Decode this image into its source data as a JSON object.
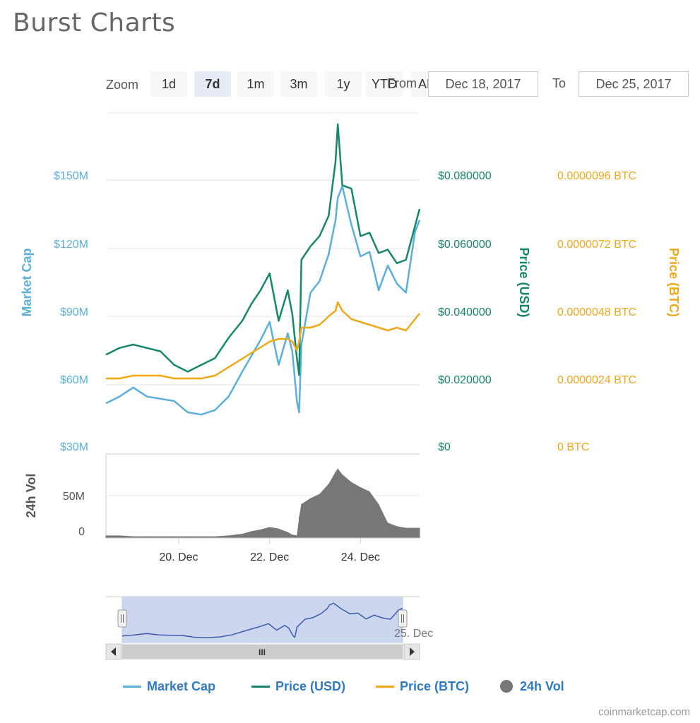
{
  "page": {
    "title": "Burst Charts"
  },
  "toolbar": {
    "zoom_label": "Zoom",
    "zoom_buttons": [
      "1d",
      "7d",
      "1m",
      "3m",
      "1y",
      "YTD",
      "ALL"
    ],
    "active_zoom": "7d",
    "from_label": "From",
    "to_label": "To",
    "from_value": "Dec 18, 2017",
    "to_value": "Dec 25, 2017"
  },
  "legend": [
    {
      "label": "Market Cap",
      "color": "#5aafdf",
      "symbol": "line"
    },
    {
      "label": "Price (USD)",
      "color": "#16876a",
      "symbol": "line"
    },
    {
      "label": "Price (BTC)",
      "color": "#f0a718",
      "symbol": "line"
    },
    {
      "label": "24h Vol",
      "color": "#777777",
      "symbol": "dot"
    }
  ],
  "credit": "coinmarketcap.com",
  "navigator": {
    "label": "25. Dec",
    "scrollbar_grip": "III"
  },
  "chart_data": {
    "type": "line",
    "x_range": [
      "2017-12-18",
      "2017-12-25"
    ],
    "x_ticks": [
      "20. Dec",
      "22. Dec",
      "24. Dec"
    ],
    "grid": true,
    "legend_position": "bottom",
    "axes": {
      "market_cap": {
        "label": "Market Cap",
        "ticks": [
          "$30M",
          "$60M",
          "$90M",
          "$120M",
          "$150M"
        ],
        "min": 30,
        "max": 150,
        "color": "#5aafdf"
      },
      "price_usd": {
        "label": "Price (USD)",
        "ticks": [
          "$0",
          "$0.020000",
          "$0.040000",
          "$0.060000",
          "$0.080000"
        ],
        "min": 0,
        "max": 0.08,
        "color": "#16876a"
      },
      "price_btc": {
        "label": "Price (BTC)",
        "ticks": [
          "0 BTC",
          "0.0000024 BTC",
          "0.0000048 BTC",
          "0.0000072 BTC",
          "0.0000096 BTC"
        ],
        "min": 0,
        "max": 9.6e-06,
        "color": "#f0a718"
      },
      "volume": {
        "label": "24h Vol",
        "ticks": [
          "0",
          "50M"
        ],
        "min": 0,
        "max": 50,
        "color": "#555555"
      }
    },
    "days": [
      18.4,
      18.7,
      19.0,
      19.3,
      19.6,
      19.9,
      20.2,
      20.5,
      20.8,
      21.1,
      21.4,
      21.6,
      21.8,
      22.0,
      22.2,
      22.4,
      22.5,
      22.6,
      22.65,
      22.7,
      22.9,
      23.1,
      23.3,
      23.45,
      23.5,
      23.6,
      23.8,
      24.0,
      24.2,
      24.4,
      24.6,
      24.8,
      25.0,
      25.2,
      25.3
    ],
    "series": [
      {
        "name": "Market Cap",
        "axis": "market_cap",
        "color": "#5aafdf",
        "values": [
          49,
          52,
          56,
          52,
          51,
          50,
          45,
          44,
          46,
          52,
          63,
          70,
          77,
          85,
          66,
          80,
          72,
          50,
          45,
          75,
          98,
          103,
          115,
          130,
          140,
          145,
          128,
          114,
          116,
          99,
          110,
          102,
          98,
          125,
          130
        ]
      },
      {
        "name": "Price (USD)",
        "axis": "price_usd",
        "color": "#16876a",
        "values": [
          0.027,
          0.029,
          0.03,
          0.029,
          0.028,
          0.024,
          0.022,
          0.024,
          0.026,
          0.032,
          0.037,
          0.042,
          0.046,
          0.051,
          0.037,
          0.046,
          0.039,
          0.026,
          0.021,
          0.055,
          0.059,
          0.062,
          0.068,
          0.084,
          0.095,
          0.077,
          0.076,
          0.062,
          0.063,
          0.057,
          0.058,
          0.054,
          0.055,
          0.065,
          0.07
        ]
      },
      {
        "name": "Price (BTC)",
        "axis": "price_btc",
        "color": "#f0a718",
        "values": [
          2.4e-06,
          2.4e-06,
          2.5e-06,
          2.5e-06,
          2.5e-06,
          2.4e-06,
          2.4e-06,
          2.4e-06,
          2.5e-06,
          2.8e-06,
          3.1e-06,
          3.3e-06,
          3.5e-06,
          3.7e-06,
          3.8e-06,
          3.8e-06,
          3.7e-06,
          3.4e-06,
          3.7e-06,
          4.2e-06,
          4.2e-06,
          4.3e-06,
          4.6e-06,
          4.8e-06,
          5.1e-06,
          4.8e-06,
          4.5e-06,
          4.4e-06,
          4.3e-06,
          4.2e-06,
          4.1e-06,
          4.2e-06,
          4.1e-06,
          4.5e-06,
          4.7e-06
        ]
      },
      {
        "name": "24h Vol",
        "axis": "volume",
        "color": "#777777",
        "type": "area",
        "values": [
          3,
          3,
          2,
          2,
          2,
          2,
          2,
          2,
          2,
          3,
          5,
          8,
          10,
          13,
          11,
          7,
          4,
          3,
          25,
          40,
          47,
          52,
          64,
          78,
          82,
          75,
          66,
          60,
          55,
          40,
          18,
          14,
          12,
          12,
          12
        ]
      }
    ]
  }
}
